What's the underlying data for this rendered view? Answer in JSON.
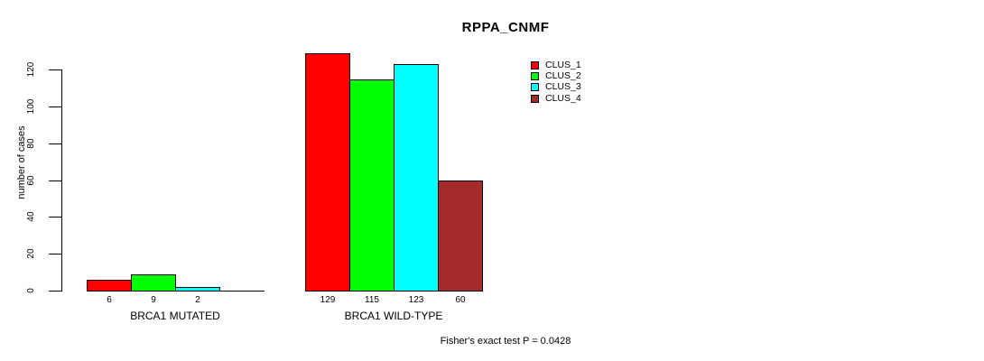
{
  "chart_data": {
    "type": "bar",
    "title": "RPPA_CNMF",
    "ylabel": "number of cases",
    "xlabel": "",
    "ylim": [
      0,
      130
    ],
    "yticks": [
      0,
      20,
      40,
      60,
      80,
      100,
      120
    ],
    "grid": false,
    "legend_position": "top-right",
    "categories": [
      "BRCA1 MUTATED",
      "BRCA1 WILD-TYPE"
    ],
    "series": [
      {
        "name": "CLUS_1",
        "color": "#ff0000",
        "values": [
          6,
          129
        ]
      },
      {
        "name": "CLUS_2",
        "color": "#00ff00",
        "values": [
          9,
          115
        ]
      },
      {
        "name": "CLUS_3",
        "color": "#00ffff",
        "values": [
          2,
          123
        ]
      },
      {
        "name": "CLUS_4",
        "color": "#a52a2a",
        "values": [
          0,
          60
        ]
      }
    ],
    "bar_value_labels": [
      [
        "6",
        "9",
        "2",
        ""
      ],
      [
        "129",
        "115",
        "123",
        "60"
      ]
    ],
    "annotation": "Fisher's exact test P = 0.0428",
    "colors": {
      "axis": "#000000",
      "text": "#000000",
      "background": "#ffffff"
    }
  }
}
